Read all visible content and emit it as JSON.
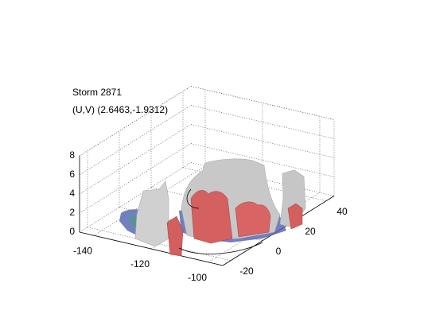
{
  "chart_data": {
    "type": "isosurface3d",
    "title": [
      "Storm 2871",
      "(U,V) (2.6463,-1.9312)"
    ],
    "xlim": [
      -145,
      -95
    ],
    "xticks": [
      -140,
      -120,
      -100
    ],
    "ylim": [
      -25,
      45
    ],
    "yticks": [
      -20,
      0,
      20,
      40
    ],
    "zlim": [
      0,
      8
    ],
    "zticks": [
      0,
      2,
      4,
      6,
      8
    ],
    "grid": true
  }
}
